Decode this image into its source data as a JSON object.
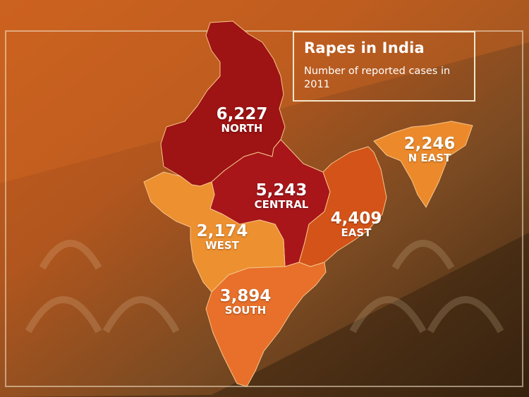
{
  "title": "Rapes in India",
  "subtitle": "Number of reported cases in 2011",
  "colors": {
    "north": "#9e1313",
    "central": "#a8161a",
    "east": "#d45318",
    "neast": "#ec8a2b",
    "west": "#ed9030",
    "south": "#e8702a"
  },
  "regions": [
    {
      "id": "north",
      "value": "6,227",
      "name": "NORTH"
    },
    {
      "id": "central",
      "value": "5,243",
      "name": "CENTRAL"
    },
    {
      "id": "east",
      "value": "4,409",
      "name": "EAST"
    },
    {
      "id": "neast",
      "value": "2,246",
      "name": "N EAST"
    },
    {
      "id": "west",
      "value": "2,174",
      "name": "WEST"
    },
    {
      "id": "south",
      "value": "3,894",
      "name": "SOUTH"
    }
  ]
}
